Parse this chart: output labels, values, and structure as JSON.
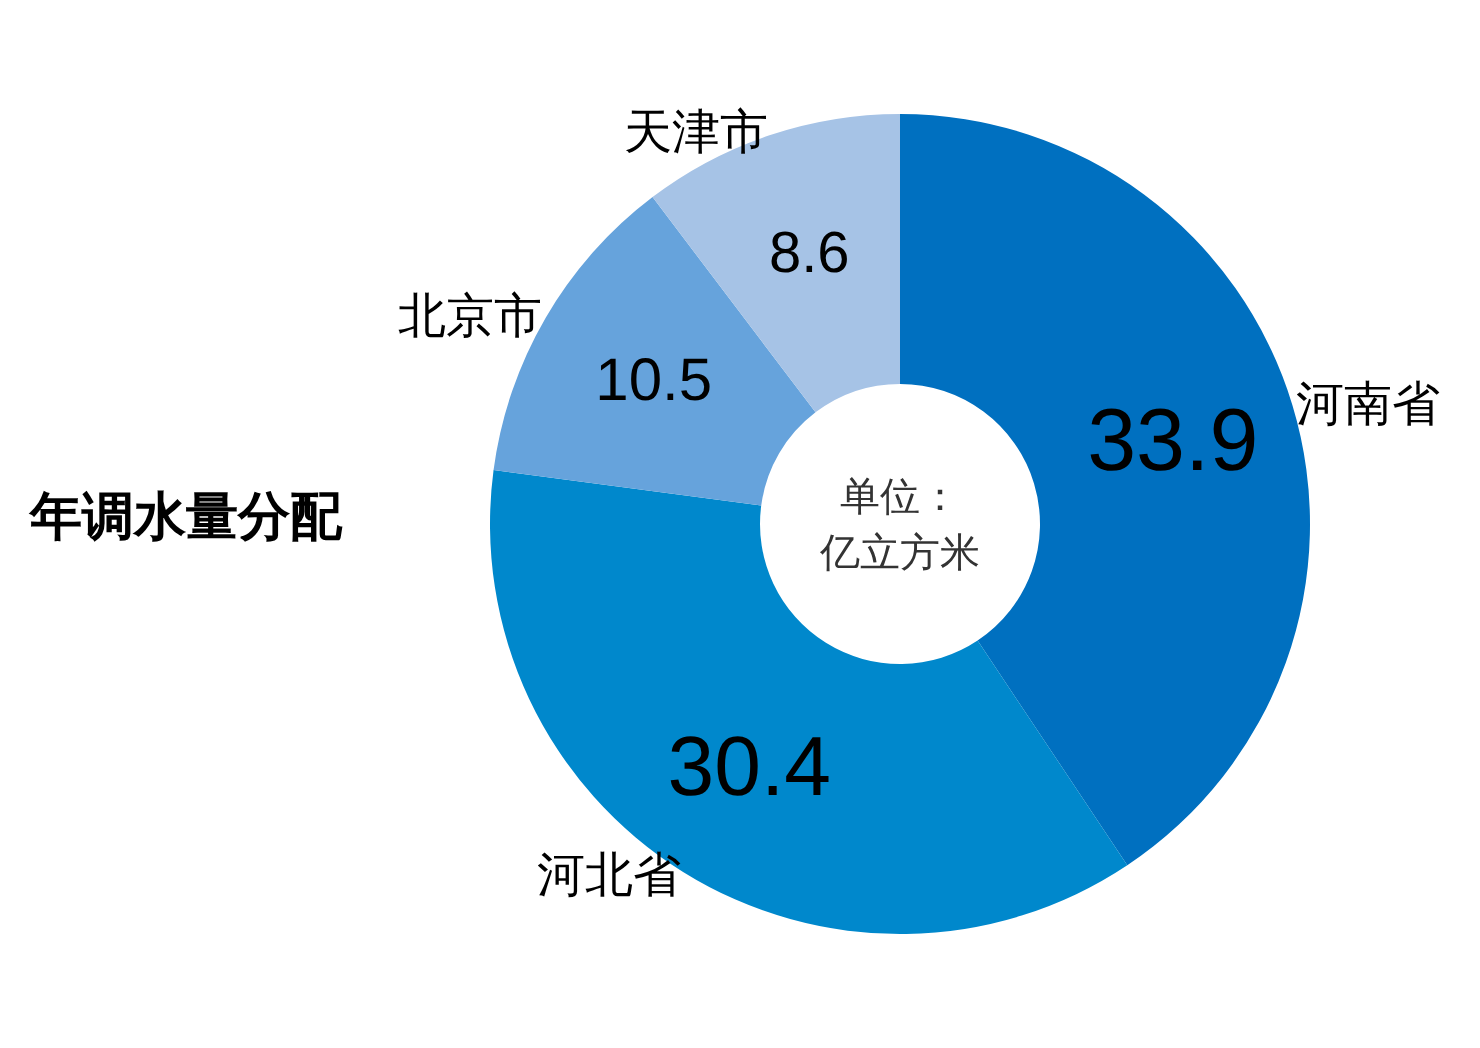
{
  "chart_data": {
    "type": "donut",
    "title": "年调水量分配",
    "annotations": [
      "单位：亿立方米"
    ],
    "categories": [
      "河南省",
      "河北省",
      "北京市",
      "天津市"
    ],
    "values": [
      33.9,
      30.4,
      10.5,
      8.6
    ],
    "colors": [
      "#0070c0",
      "#0088cc",
      "#66a3dc",
      "#a6c3e6"
    ],
    "data_labels": true,
    "legend": false
  }
}
